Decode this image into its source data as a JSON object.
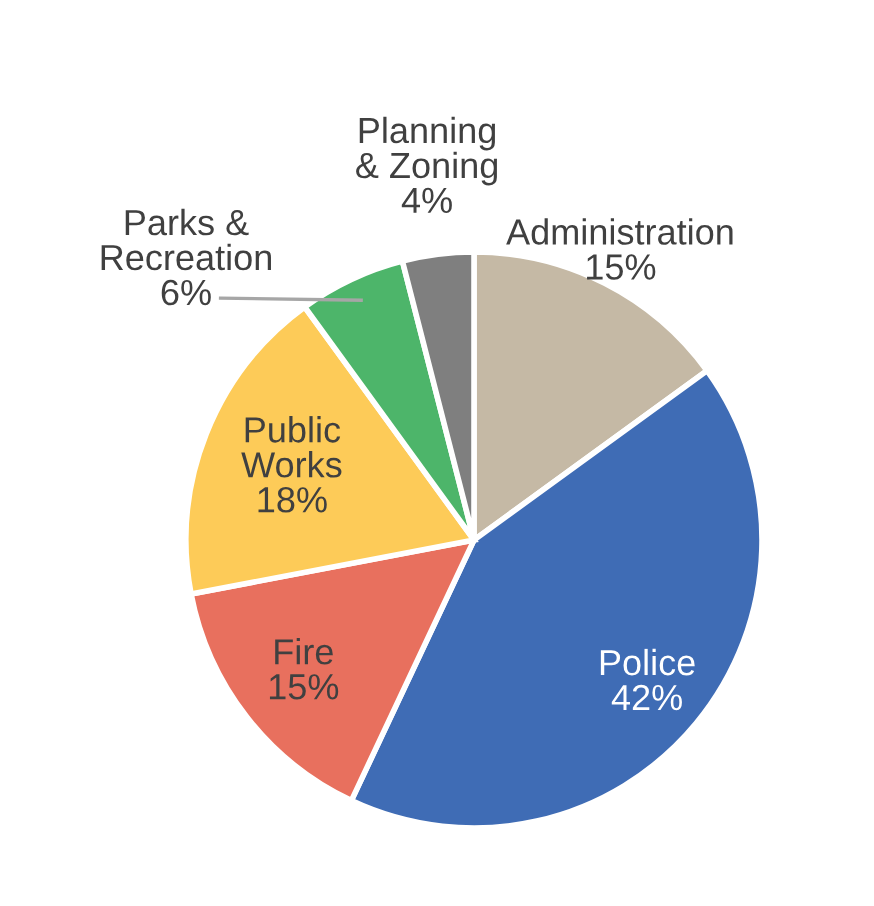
{
  "chart_data": {
    "type": "pie",
    "categories": [
      "Administration",
      "Police",
      "Fire",
      "Public\nWorks",
      "Parks &\nRecreation",
      "Planning\n& Zoning"
    ],
    "values": [
      15,
      42,
      15,
      18,
      6,
      4
    ],
    "colors": [
      "#c5b9a5",
      "#3f6cb5",
      "#e8705e",
      "#fdcb58",
      "#4db56a",
      "#7f7f7f"
    ],
    "value_labels": [
      "15%",
      "42%",
      "15%",
      "18%",
      "6%",
      "4%"
    ],
    "legend": false
  }
}
